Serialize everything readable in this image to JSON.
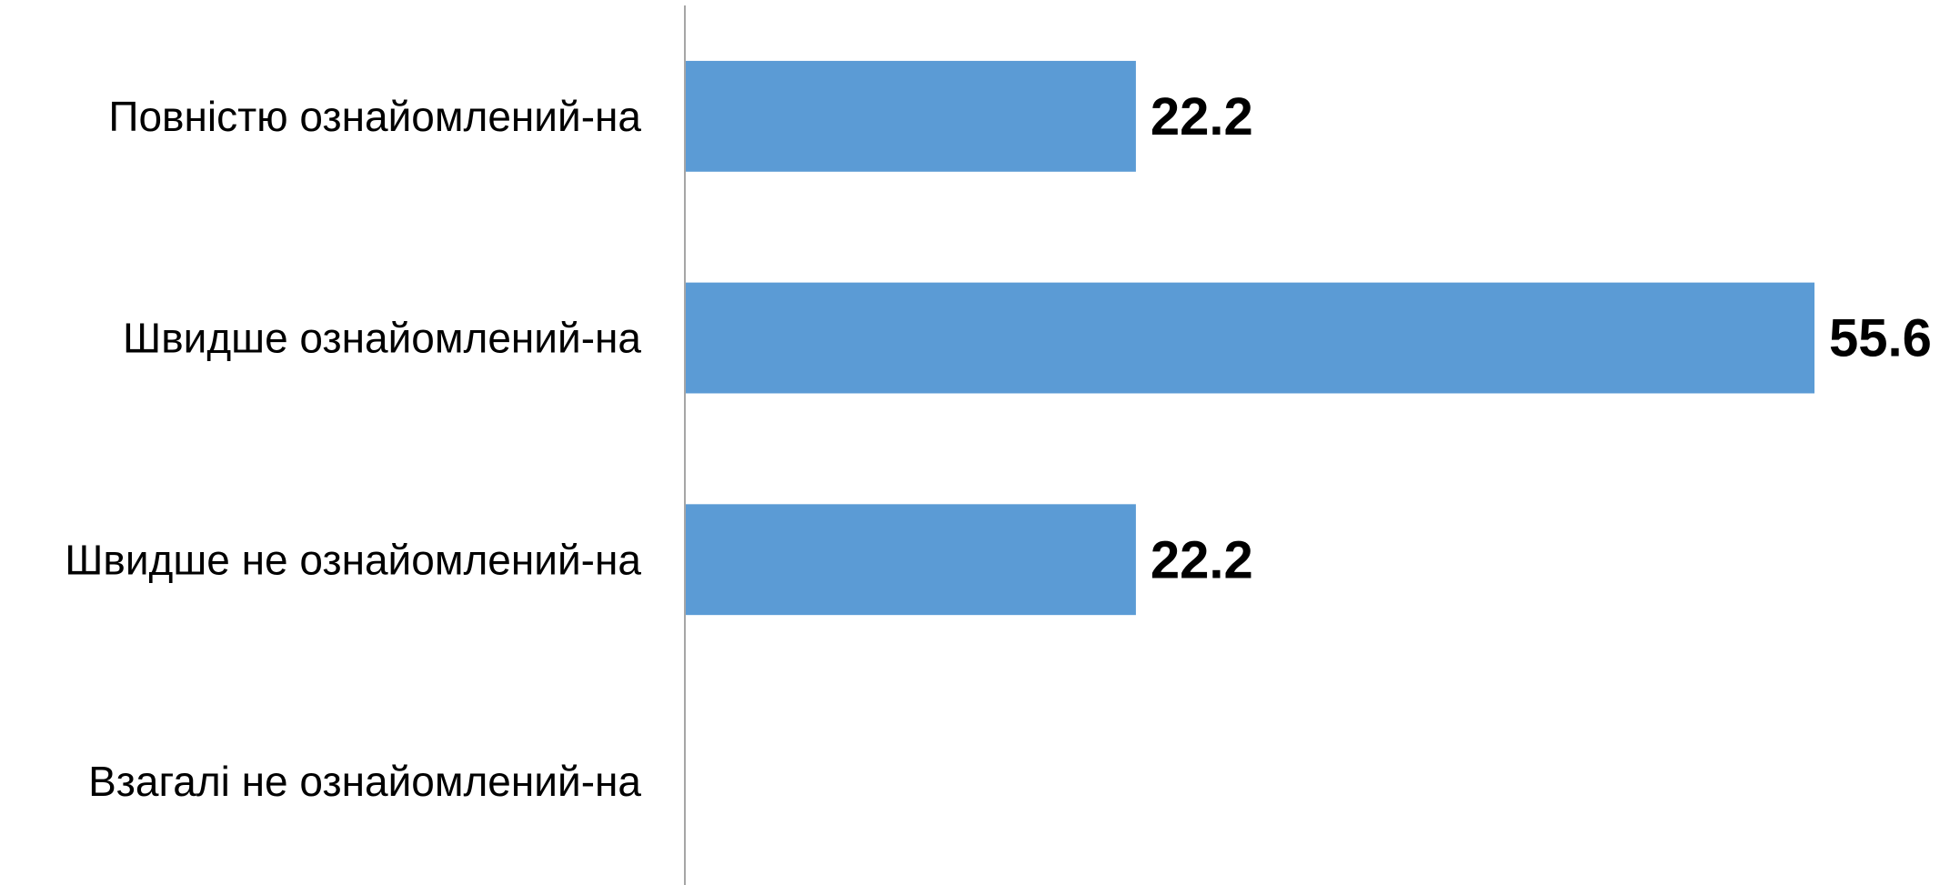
{
  "chart_data": {
    "type": "bar",
    "orientation": "horizontal",
    "categories": [
      "Повністю ознайомлений-на",
      "Швидше ознайомлений-на",
      "Швидше не ознайомлений-на",
      "Взагалі не ознайомлений-на"
    ],
    "values": [
      22.2,
      55.6,
      22.2,
      null
    ],
    "value_labels": [
      "22.2",
      "55.6",
      "22.2",
      ""
    ],
    "title": "",
    "xlabel": "",
    "ylabel": "",
    "xlim": [
      0,
      55.6
    ],
    "grid": false,
    "legend": "none",
    "colors": {
      "bar": "#5B9BD5",
      "axis": "#A6A6A6",
      "text": "#000000"
    }
  }
}
